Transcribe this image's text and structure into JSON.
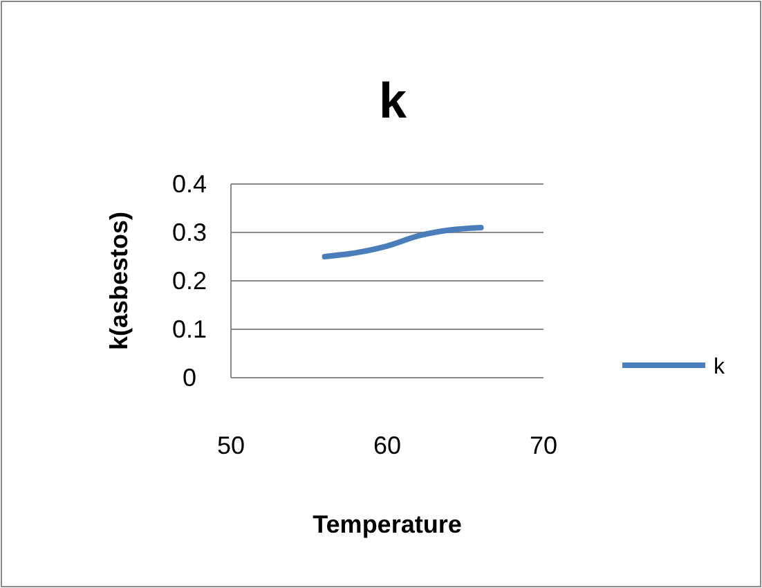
{
  "chart_data": {
    "type": "line",
    "title": "k",
    "xlabel": "Temperature",
    "ylabel": "k(asbestos)",
    "x": [
      56,
      58,
      60,
      62,
      64,
      66
    ],
    "series": [
      {
        "name": "k",
        "color": "#4a7ebb",
        "values": [
          0.25,
          0.258,
          0.272,
          0.293,
          0.305,
          0.31
        ]
      }
    ],
    "xlim": [
      50,
      70
    ],
    "xticks": [
      50,
      60,
      70
    ],
    "ylim": [
      0,
      0.4
    ],
    "yticks": [
      0,
      0.1,
      0.2,
      0.3,
      0.4
    ],
    "grid": "y",
    "legend": "right",
    "marker": "none",
    "line_style": "solid"
  }
}
